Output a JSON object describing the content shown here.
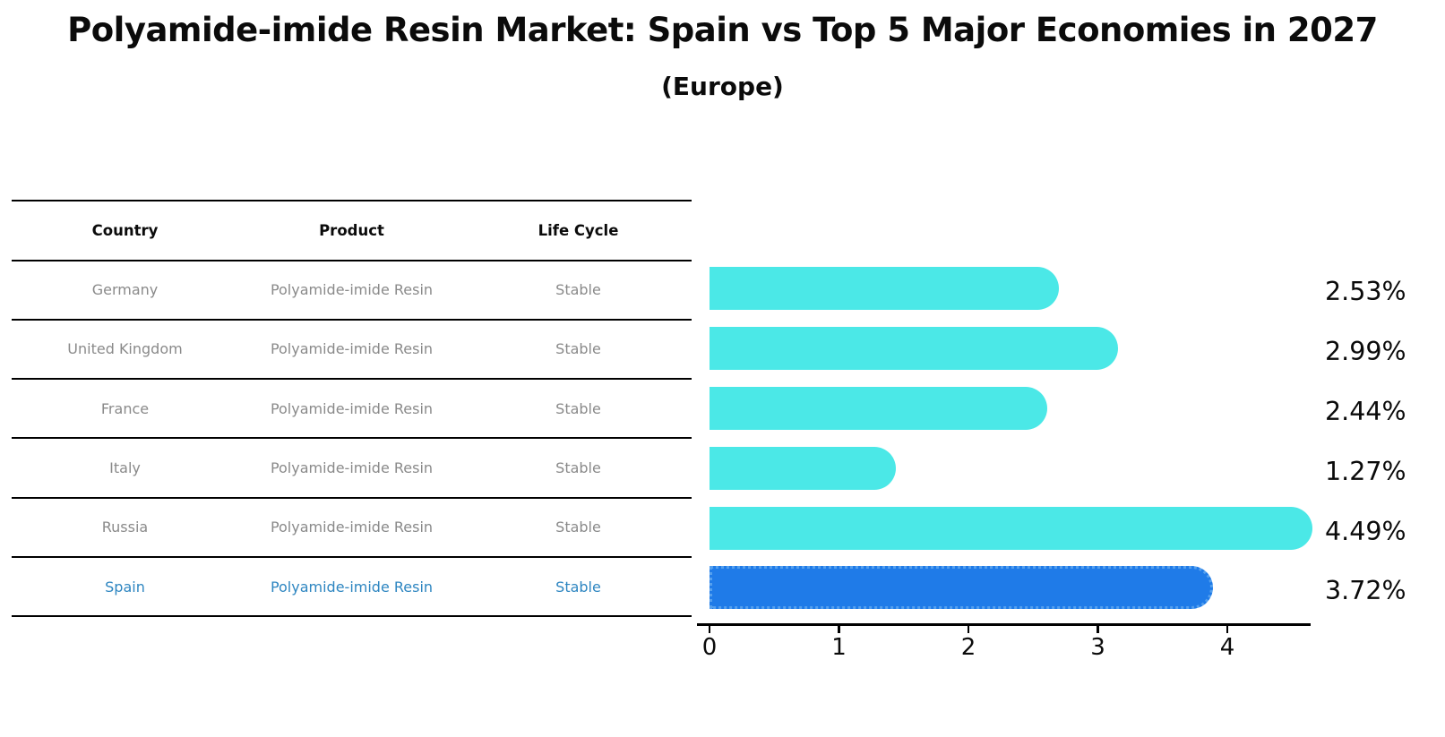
{
  "title": "Polyamide-imide Resin Market: Spain vs Top 5 Major Economies in 2027",
  "subtitle": "(Europe)",
  "table": {
    "columns": [
      "Country",
      "Product",
      "Life Cycle"
    ],
    "rows": [
      {
        "country": "Germany",
        "product": "Polyamide-imide Resin",
        "life_cycle": "Stable",
        "highlight": false
      },
      {
        "country": "United Kingdom",
        "product": "Polyamide-imide Resin",
        "life_cycle": "Stable",
        "highlight": false
      },
      {
        "country": "France",
        "product": "Polyamide-imide Resin",
        "life_cycle": "Stable",
        "highlight": false
      },
      {
        "country": "Italy",
        "product": "Polyamide-imide Resin",
        "life_cycle": "Stable",
        "highlight": false
      },
      {
        "country": "Russia",
        "product": "Polyamide-imide Resin",
        "life_cycle": "Stable",
        "highlight": false
      },
      {
        "country": "Spain",
        "product": "Polyamide-imide Resin",
        "life_cycle": "Stable",
        "highlight": true
      }
    ]
  },
  "chart_data": {
    "type": "bar",
    "orientation": "horizontal",
    "title": "Polyamide-imide Resin Market: Spain vs Top 5 Major Economies in 2027",
    "subtitle": "(Europe)",
    "categories": [
      "Germany",
      "United Kingdom",
      "France",
      "Italy",
      "Russia",
      "Spain"
    ],
    "values": [
      2.53,
      2.99,
      2.44,
      1.27,
      4.49,
      3.72
    ],
    "value_labels": [
      "2.53%",
      "2.99%",
      "2.44%",
      "1.27%",
      "4.49%",
      "3.72%"
    ],
    "x_ticks": [
      "0",
      "1",
      "2",
      "3",
      "4"
    ],
    "x_tick_values": [
      0,
      1,
      2,
      3,
      4
    ],
    "xlim": [
      0,
      4.65
    ],
    "grid": false,
    "legend": "none",
    "highlight_index": 5,
    "bar_color": "#4BE8E7",
    "highlight_bar_color": "#1F7BE8",
    "highlight_border_color": "#55A0EE",
    "highlight_text_color": "#2E86C1",
    "body_text_color": "#8a8a8a"
  }
}
